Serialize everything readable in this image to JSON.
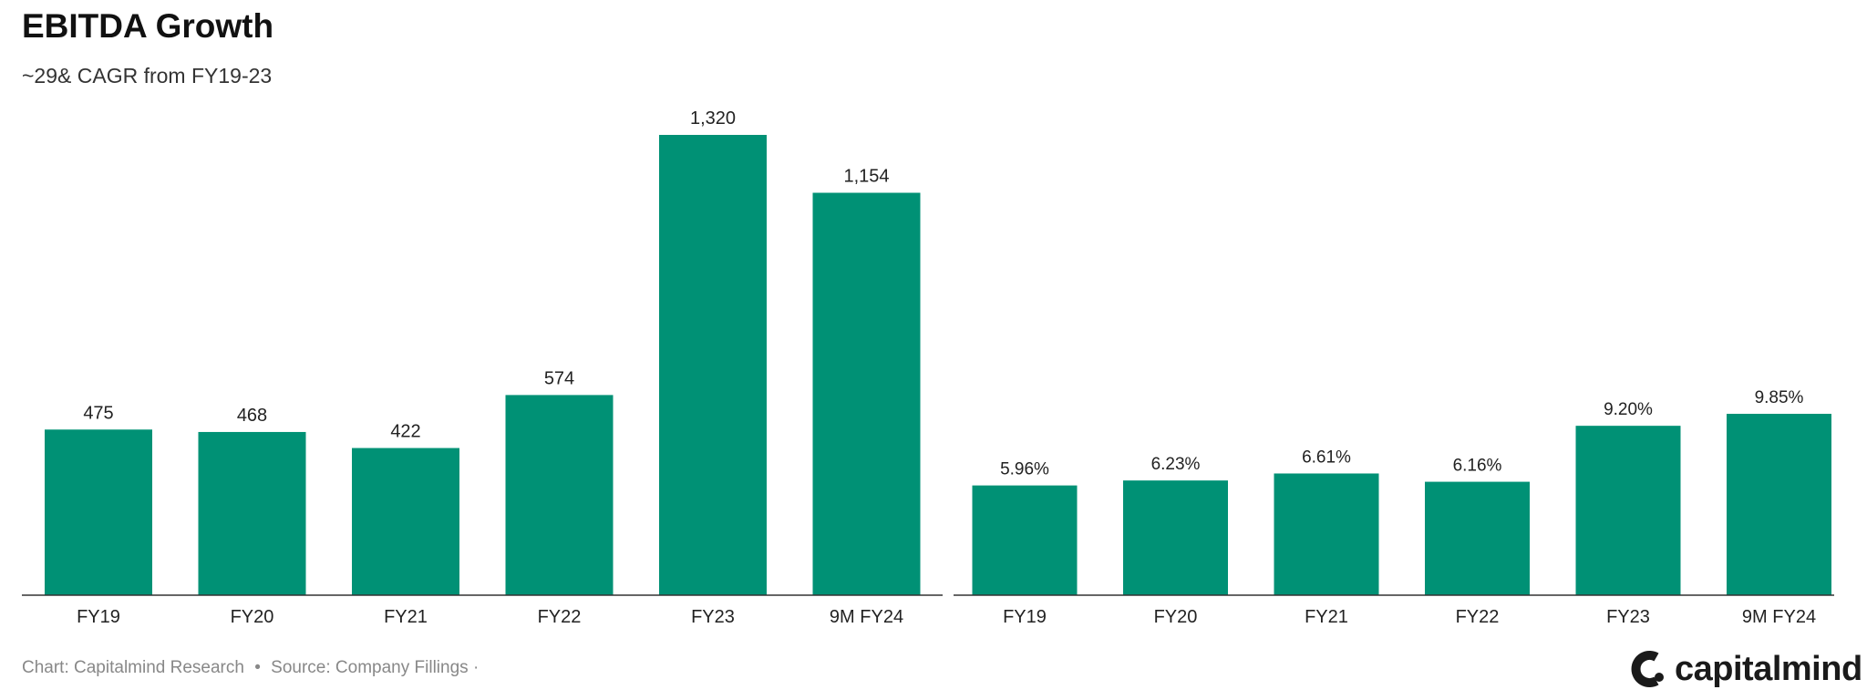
{
  "title": "EBITDA Growth",
  "subtitle": "~29& CAGR from FY19-23",
  "footer": {
    "chart_credit": "Chart: Capitalmind Research",
    "separator": "•",
    "source": "Source: Company Fillings",
    "trailing": "·"
  },
  "logo": {
    "text": "capitalmind",
    "icon": "capitalmind-logo-icon"
  },
  "colors": {
    "bar": "#009175",
    "axis": "#333333",
    "text": "#222222"
  },
  "chart_data": [
    {
      "type": "bar",
      "categories": [
        "FY19",
        "FY20",
        "FY21",
        "FY22",
        "FY23",
        "9M FY24"
      ],
      "values": [
        475,
        468,
        422,
        574,
        1320,
        1154
      ],
      "labels": [
        "475",
        "468",
        "422",
        "574",
        "1,320",
        "1,154"
      ],
      "ylim": [
        0,
        1320
      ],
      "grid": false,
      "xlabel": "",
      "ylabel": ""
    },
    {
      "type": "bar",
      "categories": [
        "FY19",
        "FY20",
        "FY21",
        "FY22",
        "FY23",
        "9M FY24"
      ],
      "values": [
        5.96,
        6.23,
        6.61,
        6.16,
        9.2,
        9.85
      ],
      "labels": [
        "5.96%",
        "6.23%",
        "6.61%",
        "6.16%",
        "9.20%",
        "9.85%"
      ],
      "ylim": [
        0,
        25
      ],
      "grid": false,
      "xlabel": "",
      "ylabel": ""
    }
  ]
}
